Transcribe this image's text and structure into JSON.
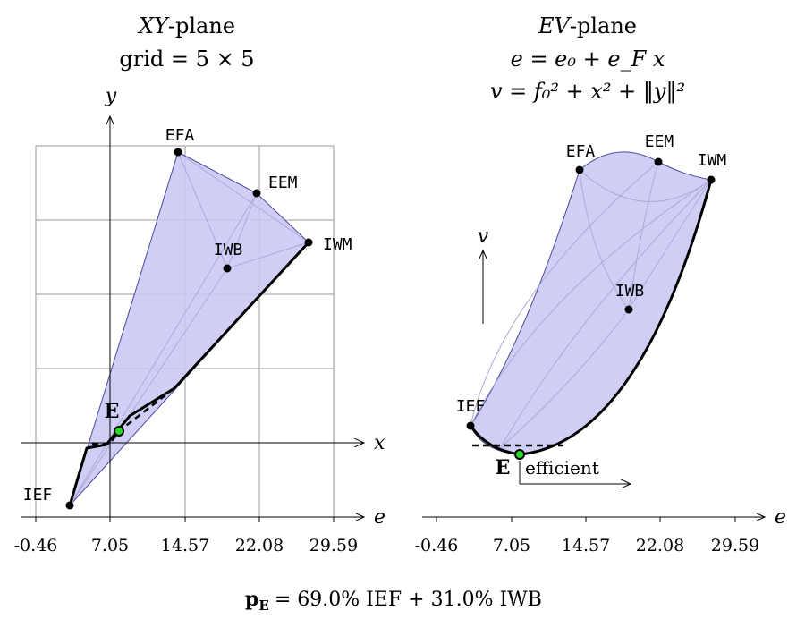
{
  "left_panel": {
    "title_line1_italic": "XY",
    "title_line1_rest": "-plane",
    "title_line2": "grid = 5 × 5",
    "y_axis_label": "y",
    "x_axis_label": "x",
    "e_axis_label": "e"
  },
  "right_panel": {
    "title_line1_italic": "EV",
    "title_line1_rest": "-plane",
    "formula_e": "e = e₀ + e_F x",
    "formula_v": "v = f₀² + x² + ‖y‖²",
    "v_axis_label": "v",
    "e_axis_label": "e",
    "efficient_label": "efficient"
  },
  "points": {
    "efa": "EFA",
    "eem": "EEM",
    "iwm": "IWM",
    "iwb": "IWB",
    "ief": "IEF",
    "e": "E"
  },
  "e_ticks": [
    "-0.46",
    "7.05",
    "14.57",
    "22.08",
    "29.59"
  ],
  "caption": {
    "p_label": "p",
    "p_sub": "E",
    "text": "= 69.0% IEF + 31.0% IWB"
  },
  "colors": {
    "hull_fill": "#c8c8f5",
    "hull_edge": "#4a4a9a",
    "efficient_point": "#22dd22"
  }
}
